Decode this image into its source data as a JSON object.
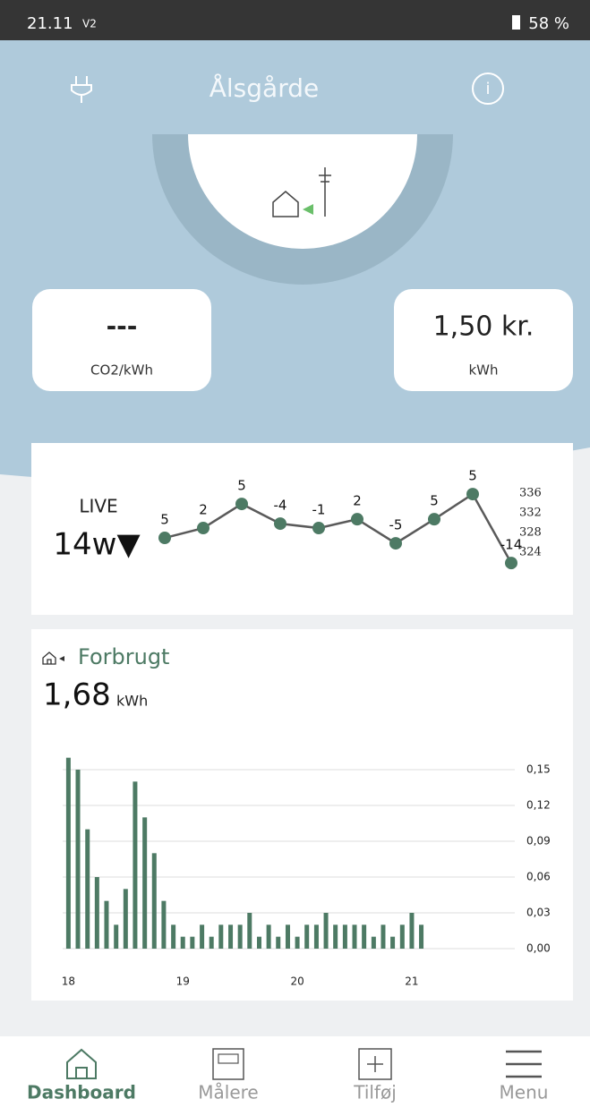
{
  "status_bar": {
    "time": "21.11",
    "carrier": "V2",
    "battery": "58 %"
  },
  "header": {
    "title": "Ålsgårde"
  },
  "cards": [
    {
      "value": "---",
      "unit": "CO2/kWh"
    },
    {
      "value": "1,50 kr.",
      "unit": "kWh"
    }
  ],
  "live": {
    "label": "LIVE",
    "value": "14w▼",
    "chart": {
      "type": "line",
      "color": "#4d7a64",
      "line_color": "#5a5a5a",
      "values": [
        326.9,
        328.9,
        333.8,
        329.8,
        328.9,
        330.7,
        325.8,
        330.7,
        335.8,
        321.8
      ],
      "annotations": [
        "5",
        "2",
        "5",
        "-4",
        "-1",
        "2",
        "-5",
        "5",
        "5",
        "-14"
      ],
      "ylim": [
        320,
        338
      ],
      "yticks": [
        336,
        332,
        328,
        324
      ]
    }
  },
  "consumption": {
    "title": "Forbrugt",
    "value": "1,68",
    "unit": "kWh",
    "chart": {
      "type": "bar",
      "color": "#4d7a64",
      "x": [
        18.0,
        18.083,
        18.167,
        18.25,
        18.333,
        18.417,
        18.5,
        18.583,
        18.667,
        18.75,
        18.833,
        18.917,
        19.0,
        19.083,
        19.167,
        19.25,
        19.333,
        19.417,
        19.5,
        19.583,
        19.667,
        19.75,
        19.833,
        19.917,
        20.0,
        20.083,
        20.167,
        20.25,
        20.333,
        20.417,
        20.5,
        20.583,
        20.667,
        20.75,
        20.833,
        20.917,
        21.0,
        21.083
      ],
      "values": [
        0.16,
        0.15,
        0.1,
        0.06,
        0.04,
        0.02,
        0.05,
        0.14,
        0.11,
        0.08,
        0.04,
        0.02,
        0.01,
        0.01,
        0.02,
        0.01,
        0.02,
        0.02,
        0.02,
        0.03,
        0.01,
        0.02,
        0.01,
        0.02,
        0.01,
        0.02,
        0.02,
        0.03,
        0.02,
        0.02,
        0.02,
        0.02,
        0.01,
        0.02,
        0.01,
        0.02,
        0.03,
        0.02
      ],
      "xlim": [
        17.95,
        21.9
      ],
      "xticks": [
        18,
        19,
        20,
        21
      ],
      "ylim": [
        0,
        0.165
      ],
      "yticks": [
        {
          "value": 0,
          "label": "0,00"
        },
        {
          "value": 0.03,
          "label": "0,03"
        },
        {
          "value": 0.06,
          "label": "0,06"
        },
        {
          "value": 0.09,
          "label": "0,09"
        },
        {
          "value": 0.12,
          "label": "0,12"
        },
        {
          "value": 0.15,
          "label": "0,15"
        }
      ],
      "grid": true
    }
  },
  "nav": [
    {
      "label": "Dashboard"
    },
    {
      "label": "Målere"
    },
    {
      "label": "Tilføj"
    },
    {
      "label": "Menu"
    }
  ]
}
